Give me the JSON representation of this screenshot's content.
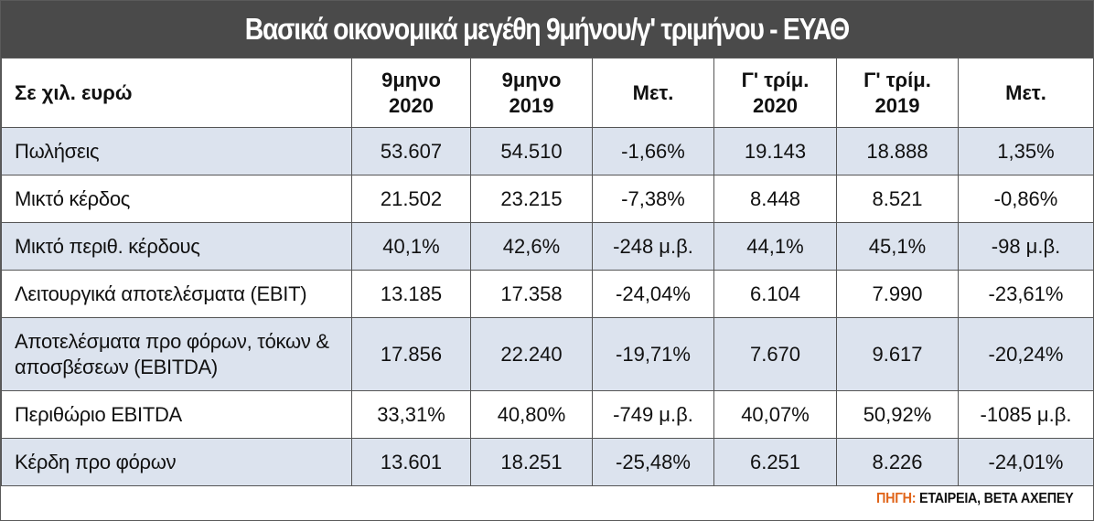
{
  "title": "Βασικά οικονομικά μεγέθη 9μήνου/γ' τριμήνου - ΕΥΑΘ",
  "header": {
    "col0": "Σε χιλ. ευρώ",
    "col1_l1": "9μηνο",
    "col1_l2": "2020",
    "col2_l1": "9μηνο",
    "col2_l2": "2019",
    "col3": "Μετ.",
    "col4_l1": "Γ' τρίμ.",
    "col4_l2": "2020",
    "col5_l1": "Γ' τρίμ.",
    "col5_l2": "2019",
    "col6": "Μετ."
  },
  "rows": [
    {
      "label": "Πωλήσεις",
      "c1": "53.607",
      "c2": "54.510",
      "c3": "-1,66%",
      "c4": "19.143",
      "c5": "18.888",
      "c6": "1,35%"
    },
    {
      "label": "Μικτό κέρδος",
      "c1": "21.502",
      "c2": "23.215",
      "c3": "-7,38%",
      "c4": "8.448",
      "c5": "8.521",
      "c6": "-0,86%"
    },
    {
      "label": "Μικτό περιθ. κέρδους",
      "c1": "40,1%",
      "c2": "42,6%",
      "c3": "-248 μ.β.",
      "c4": "44,1%",
      "c5": "45,1%",
      "c6": "-98 μ.β."
    },
    {
      "label": "Λειτουργικά αποτελέσματα (EBIT)",
      "c1": "13.185",
      "c2": "17.358",
      "c3": "-24,04%",
      "c4": "6.104",
      "c5": "7.990",
      "c6": "-23,61%"
    },
    {
      "label": "Αποτελέσματα προ φόρων, τόκων & αποσβέσεων (EBITDA)",
      "c1": "17.856",
      "c2": "22.240",
      "c3": "-19,71%",
      "c4": "7.670",
      "c5": "9.617",
      "c6": "-20,24%"
    },
    {
      "label": "Περιθώριο EBITDA",
      "c1": "33,31%",
      "c2": "40,80%",
      "c3": "-749 μ.β.",
      "c4": "40,07%",
      "c5": "50,92%",
      "c6": "-1085 μ.β."
    },
    {
      "label": "Κέρδη προ φόρων",
      "c1": "13.601",
      "c2": "18.251",
      "c3": "-25,48%",
      "c4": "6.251",
      "c5": "8.226",
      "c6": "-24,01%"
    }
  ],
  "source": {
    "label": "ΠΗΓΗ:",
    "value": "ΕΤΑΙΡΕΙΑ, ΒΕΤΑ ΑΧΕΠΕΥ"
  },
  "colors": {
    "title_bg": "#4a4a4a",
    "row_shade": "#dce3ee",
    "source_label": "#e0651a"
  }
}
